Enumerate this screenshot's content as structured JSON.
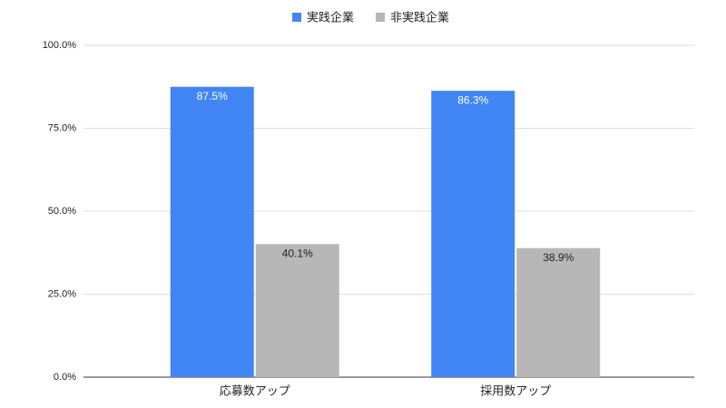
{
  "chart_data": {
    "type": "bar",
    "categories": [
      "応募数アップ",
      "採用数アップ"
    ],
    "series": [
      {
        "name": "実践企業",
        "color": "#4285f4",
        "values": [
          87.5,
          86.3
        ],
        "value_labels": [
          "87.5%",
          "86.3%"
        ]
      },
      {
        "name": "非実践企業",
        "color": "#b7b7b7",
        "values": [
          40.1,
          38.9
        ],
        "value_labels": [
          "40.1%",
          "38.9%"
        ]
      }
    ],
    "ylim": [
      0,
      100
    ],
    "yticks": [
      {
        "value": 0,
        "label": "0.0%"
      },
      {
        "value": 25,
        "label": "25.0%"
      },
      {
        "value": 50,
        "label": "50.0%"
      },
      {
        "value": 75,
        "label": "75.0%"
      },
      {
        "value": 100,
        "label": "100.0%"
      }
    ],
    "grid": true,
    "legend": "top"
  }
}
